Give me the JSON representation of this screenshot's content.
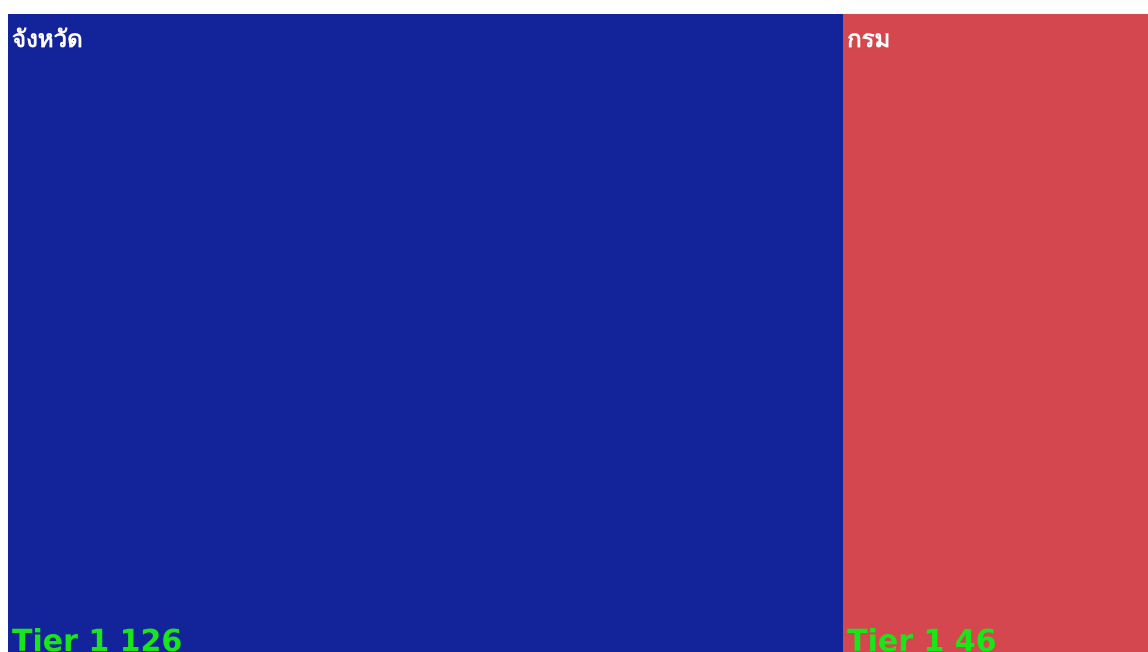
{
  "chart_data": {
    "type": "treemap",
    "categories": [
      "จังหวัด",
      "กรม"
    ],
    "values": [
      126,
      46
    ],
    "value_labels": [
      "Tier 1 126",
      "Tier 1 46"
    ],
    "colors": [
      "#13249b",
      "#d4474f"
    ],
    "label_color": "#ffffff",
    "value_color": "#19e619"
  }
}
